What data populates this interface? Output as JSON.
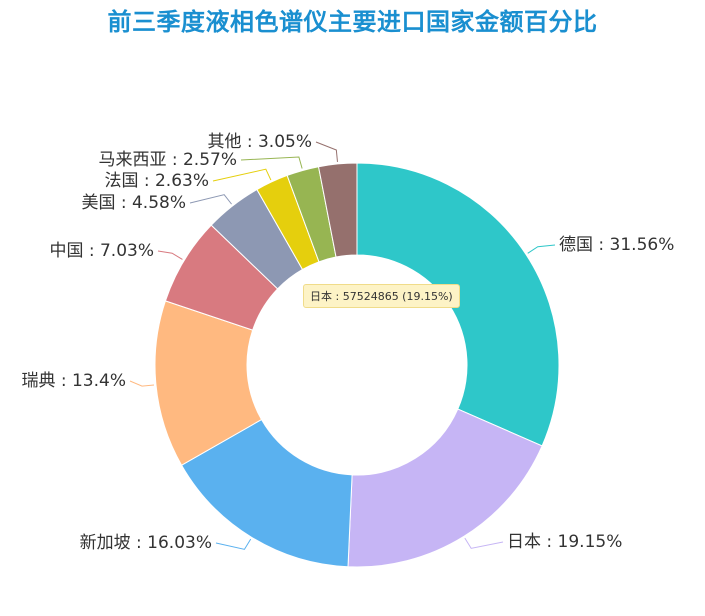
{
  "title": "前三季度液相色谱仪主要进口国家金额百分比",
  "tooltip": {
    "text": "日本 : 57524865 (19.15%)"
  },
  "chart_data": {
    "type": "pie",
    "title": "前三季度液相色谱仪主要进口国家金额百分比",
    "donut": true,
    "label_format": "{name} : {percent}%",
    "slices": [
      {
        "name": "德国",
        "percent": "31.56",
        "value": 31.56,
        "color": "#2ec7c9"
      },
      {
        "name": "日本",
        "percent": "19.15",
        "value": 19.15,
        "color": "#c6b5f5"
      },
      {
        "name": "新加坡",
        "percent": "16.03",
        "value": 16.03,
        "color": "#5ab1ef"
      },
      {
        "name": "瑞典",
        "percent": "13.4",
        "value": 13.4,
        "color": "#ffb980"
      },
      {
        "name": "中国",
        "percent": "7.03",
        "value": 7.03,
        "color": "#d87a80"
      },
      {
        "name": "美国",
        "percent": "4.58",
        "value": 4.58,
        "color": "#8d98b3"
      },
      {
        "name": "法国",
        "percent": "2.63",
        "value": 2.63,
        "color": "#e5cf0d"
      },
      {
        "name": "马来西亚",
        "percent": "2.57",
        "value": 2.57,
        "color": "#97b552"
      },
      {
        "name": "其他",
        "percent": "3.05",
        "value": 3.05,
        "color": "#95706d"
      }
    ]
  }
}
